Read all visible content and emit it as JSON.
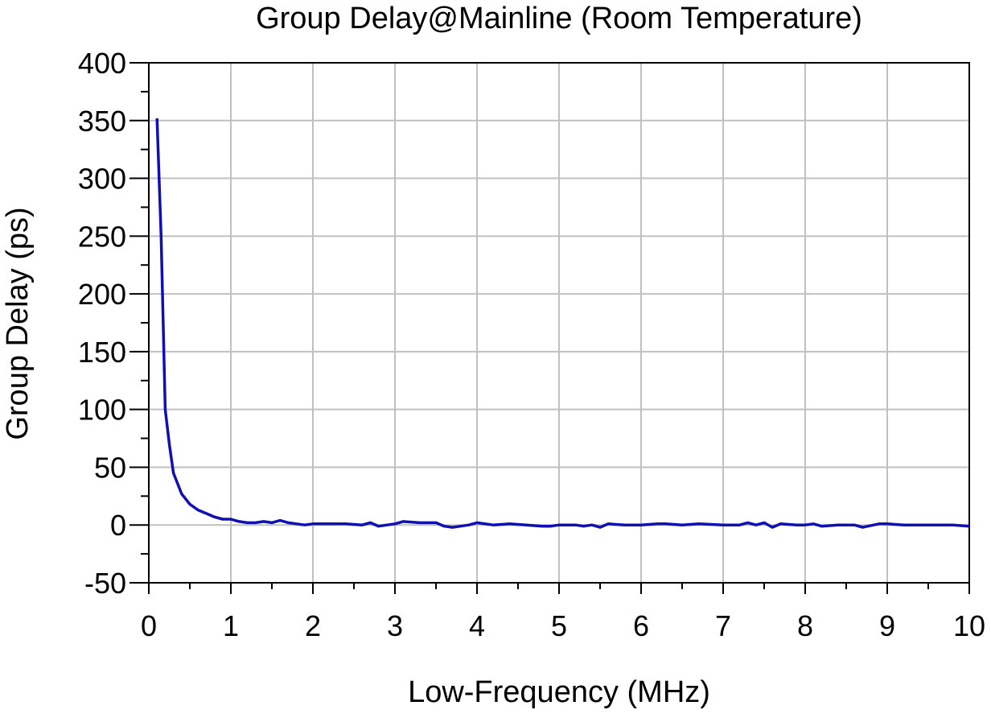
{
  "chart_data": {
    "type": "line",
    "title": "Group Delay@Mainline (Room Temperature)",
    "xlabel": "Low-Frequency (MHz)",
    "ylabel": "Group Delay (ps)",
    "xlim": [
      0,
      10
    ],
    "ylim": [
      -50,
      400
    ],
    "xticks": [
      0,
      1,
      2,
      3,
      4,
      5,
      6,
      7,
      8,
      9,
      10
    ],
    "yticks": [
      -50,
      0,
      50,
      100,
      150,
      200,
      250,
      300,
      350,
      400
    ],
    "grid": true,
    "series": [
      {
        "color": "#1010b0",
        "x": [
          0.1,
          0.15,
          0.2,
          0.25,
          0.3,
          0.4,
          0.5,
          0.6,
          0.7,
          0.8,
          0.9,
          1.0,
          1.1,
          1.2,
          1.3,
          1.4,
          1.5,
          1.6,
          1.7,
          1.8,
          1.9,
          2.0,
          2.2,
          2.4,
          2.6,
          2.7,
          2.8,
          3.0,
          3.1,
          3.3,
          3.5,
          3.6,
          3.7,
          3.8,
          3.9,
          4.0,
          4.2,
          4.4,
          4.6,
          4.8,
          4.9,
          5.0,
          5.2,
          5.3,
          5.4,
          5.5,
          5.6,
          5.8,
          6.0,
          6.2,
          6.3,
          6.5,
          6.7,
          7.0,
          7.2,
          7.3,
          7.4,
          7.5,
          7.6,
          7.7,
          7.9,
          8.0,
          8.1,
          8.2,
          8.4,
          8.6,
          8.7,
          8.9,
          9.0,
          9.2,
          9.4,
          9.6,
          9.8,
          10.0
        ],
        "values": [
          352,
          250,
          100,
          70,
          45,
          27,
          18,
          13,
          10,
          7,
          5,
          5,
          3,
          2,
          2,
          3,
          2,
          4,
          2,
          1,
          0,
          1,
          1,
          1,
          0,
          2,
          -1,
          1,
          3,
          2,
          2,
          -1,
          -2,
          -1,
          0,
          2,
          0,
          1,
          0,
          -1,
          -1,
          0,
          0,
          -1,
          0,
          -2,
          1,
          0,
          0,
          1,
          1,
          0,
          1,
          0,
          0,
          2,
          0,
          2,
          -2,
          1,
          0,
          0,
          1,
          -1,
          0,
          0,
          -2,
          1,
          1,
          0,
          0,
          0,
          0,
          -1
        ]
      }
    ]
  }
}
